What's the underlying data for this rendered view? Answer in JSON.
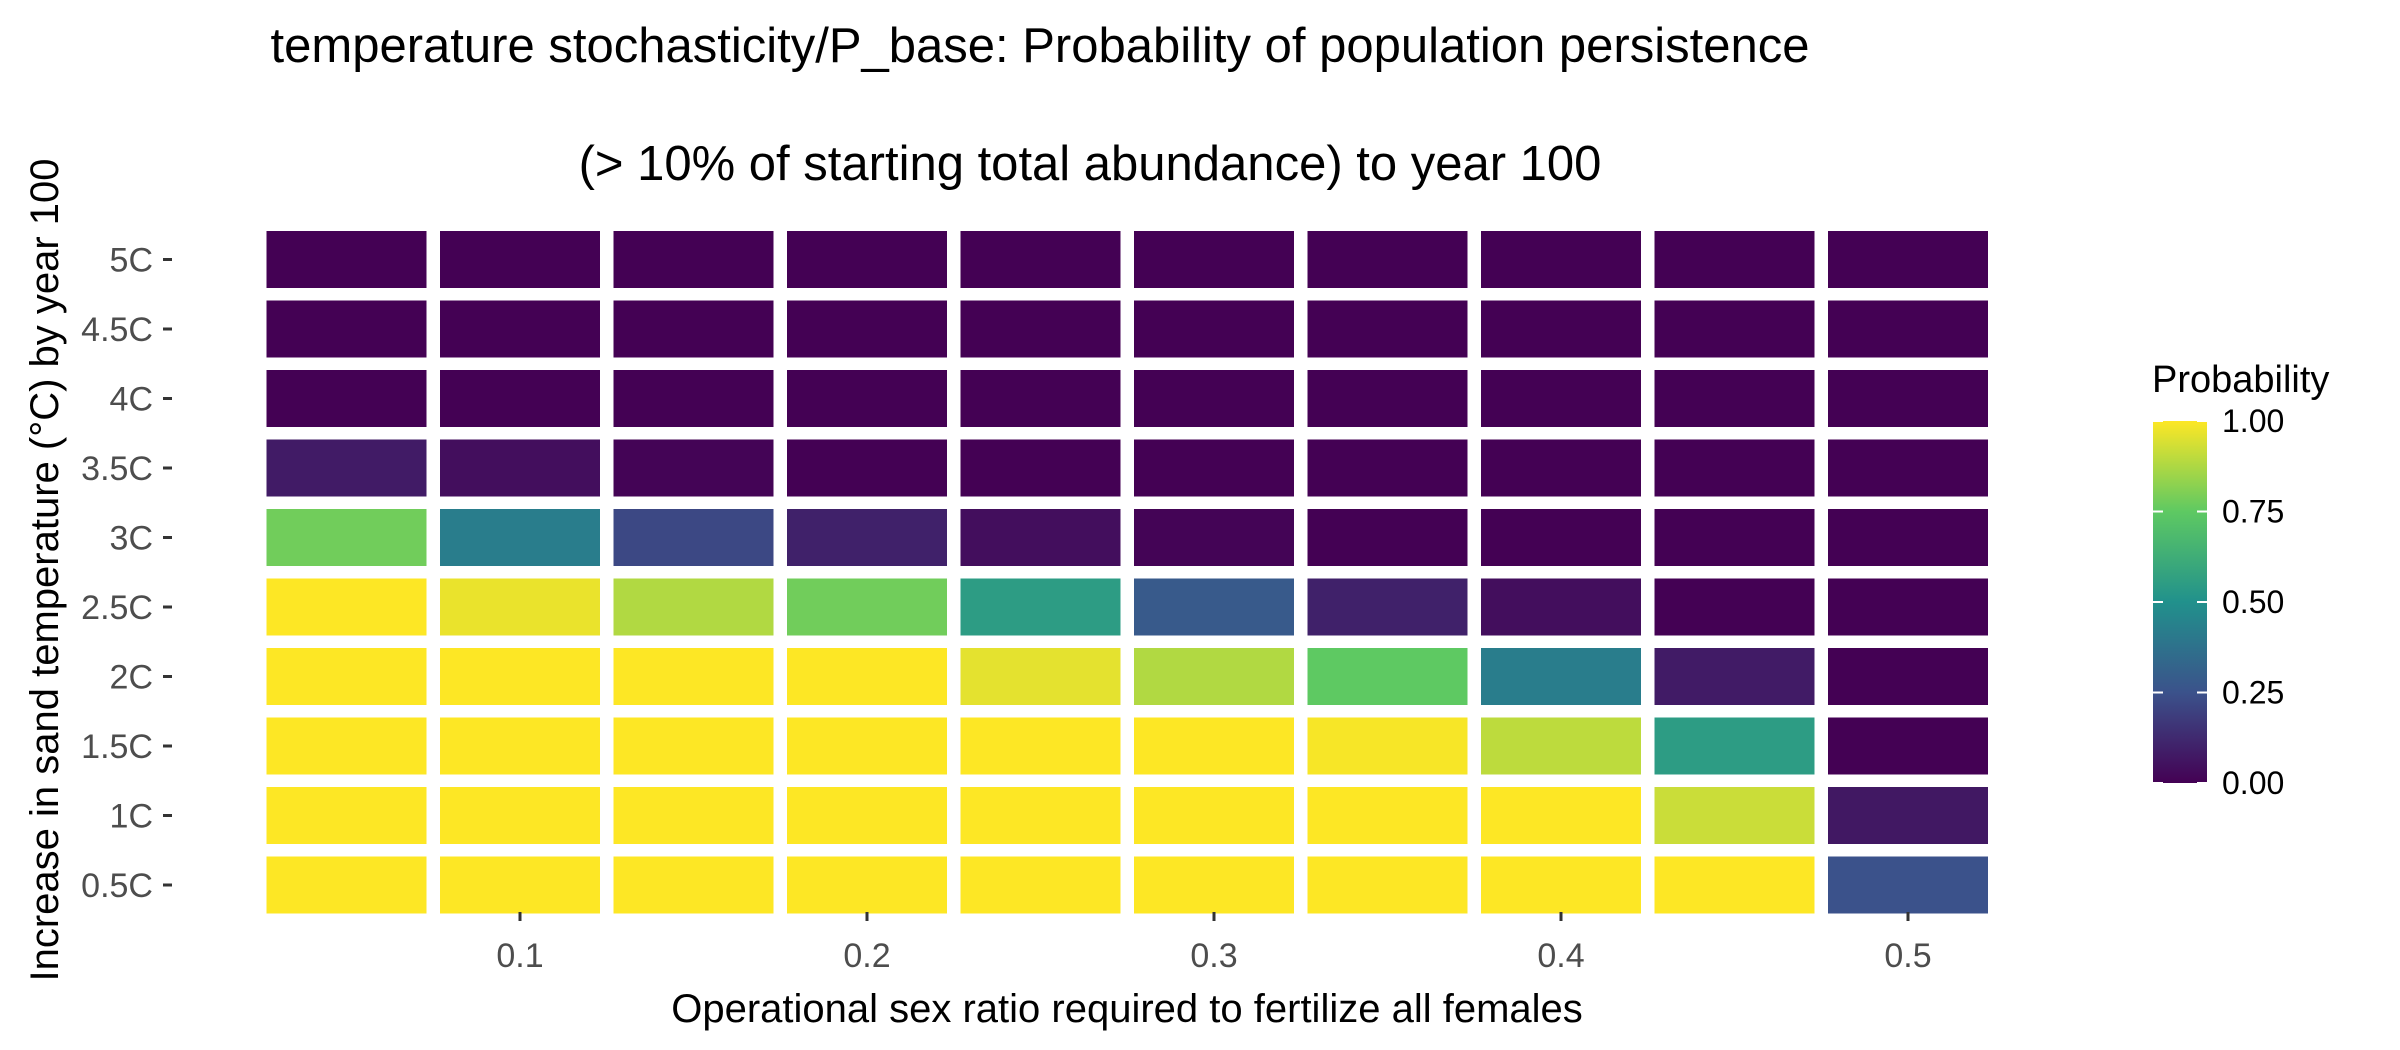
{
  "chart_data": {
    "type": "heatmap",
    "title_line1": "temperature stochasticity/P_base: Probability of population persistence",
    "title_line2": "(> 10% of starting total abundance) to year 100",
    "xlabel": "Operational sex ratio required to fertilize all females",
    "ylabel": "Increase in sand temperature (°C) by year 100",
    "x": [
      0.05,
      0.1,
      0.15,
      0.2,
      0.25,
      0.3,
      0.35,
      0.4,
      0.45,
      0.5
    ],
    "x_tick_values": [
      0.1,
      0.2,
      0.3,
      0.4,
      0.5
    ],
    "x_tick_labels": [
      "0.1",
      "0.2",
      "0.3",
      "0.4",
      "0.5"
    ],
    "y": [
      "0.5C",
      "1C",
      "1.5C",
      "2C",
      "2.5C",
      "3C",
      "3.5C",
      "4C",
      "4.5C",
      "5C"
    ],
    "values": [
      [
        1.0,
        1.0,
        1.0,
        1.0,
        1.0,
        1.0,
        1.0,
        1.0,
        1.0,
        0.25
      ],
      [
        1.0,
        1.0,
        1.0,
        1.0,
        1.0,
        1.0,
        1.0,
        1.0,
        0.92,
        0.07
      ],
      [
        1.0,
        1.0,
        1.0,
        1.0,
        1.0,
        1.0,
        0.99,
        0.9,
        0.55,
        0.0
      ],
      [
        1.0,
        1.0,
        1.0,
        1.0,
        0.96,
        0.88,
        0.75,
        0.42,
        0.08,
        0.0
      ],
      [
        1.0,
        0.97,
        0.88,
        0.78,
        0.55,
        0.28,
        0.1,
        0.04,
        0.0,
        0.0
      ],
      [
        0.78,
        0.42,
        0.22,
        0.1,
        0.04,
        0.01,
        0.0,
        0.0,
        0.0,
        0.0
      ],
      [
        0.08,
        0.04,
        0.01,
        0.0,
        0.0,
        0.0,
        0.0,
        0.0,
        0.0,
        0.0
      ],
      [
        0.0,
        0.0,
        0.0,
        0.0,
        0.0,
        0.0,
        0.0,
        0.0,
        0.0,
        0.0
      ],
      [
        0.0,
        0.0,
        0.0,
        0.0,
        0.0,
        0.0,
        0.0,
        0.0,
        0.0,
        0.0
      ],
      [
        0.0,
        0.0,
        0.0,
        0.0,
        0.0,
        0.0,
        0.0,
        0.0,
        0.0,
        0.0
      ]
    ],
    "value_range": [
      0,
      1
    ],
    "colormap": "viridis",
    "colormap_stops": [
      "#440154",
      "#3b528b",
      "#21918c",
      "#5ec962",
      "#fde725"
    ],
    "legend": {
      "title": "Probability",
      "placement": "right",
      "ticks": [
        1.0,
        0.75,
        0.5,
        0.25,
        0.0
      ],
      "tick_labels": [
        "1.00",
        "0.75",
        "0.50",
        "0.25",
        "0.00"
      ]
    },
    "grid": false,
    "background": "#ffffff"
  }
}
